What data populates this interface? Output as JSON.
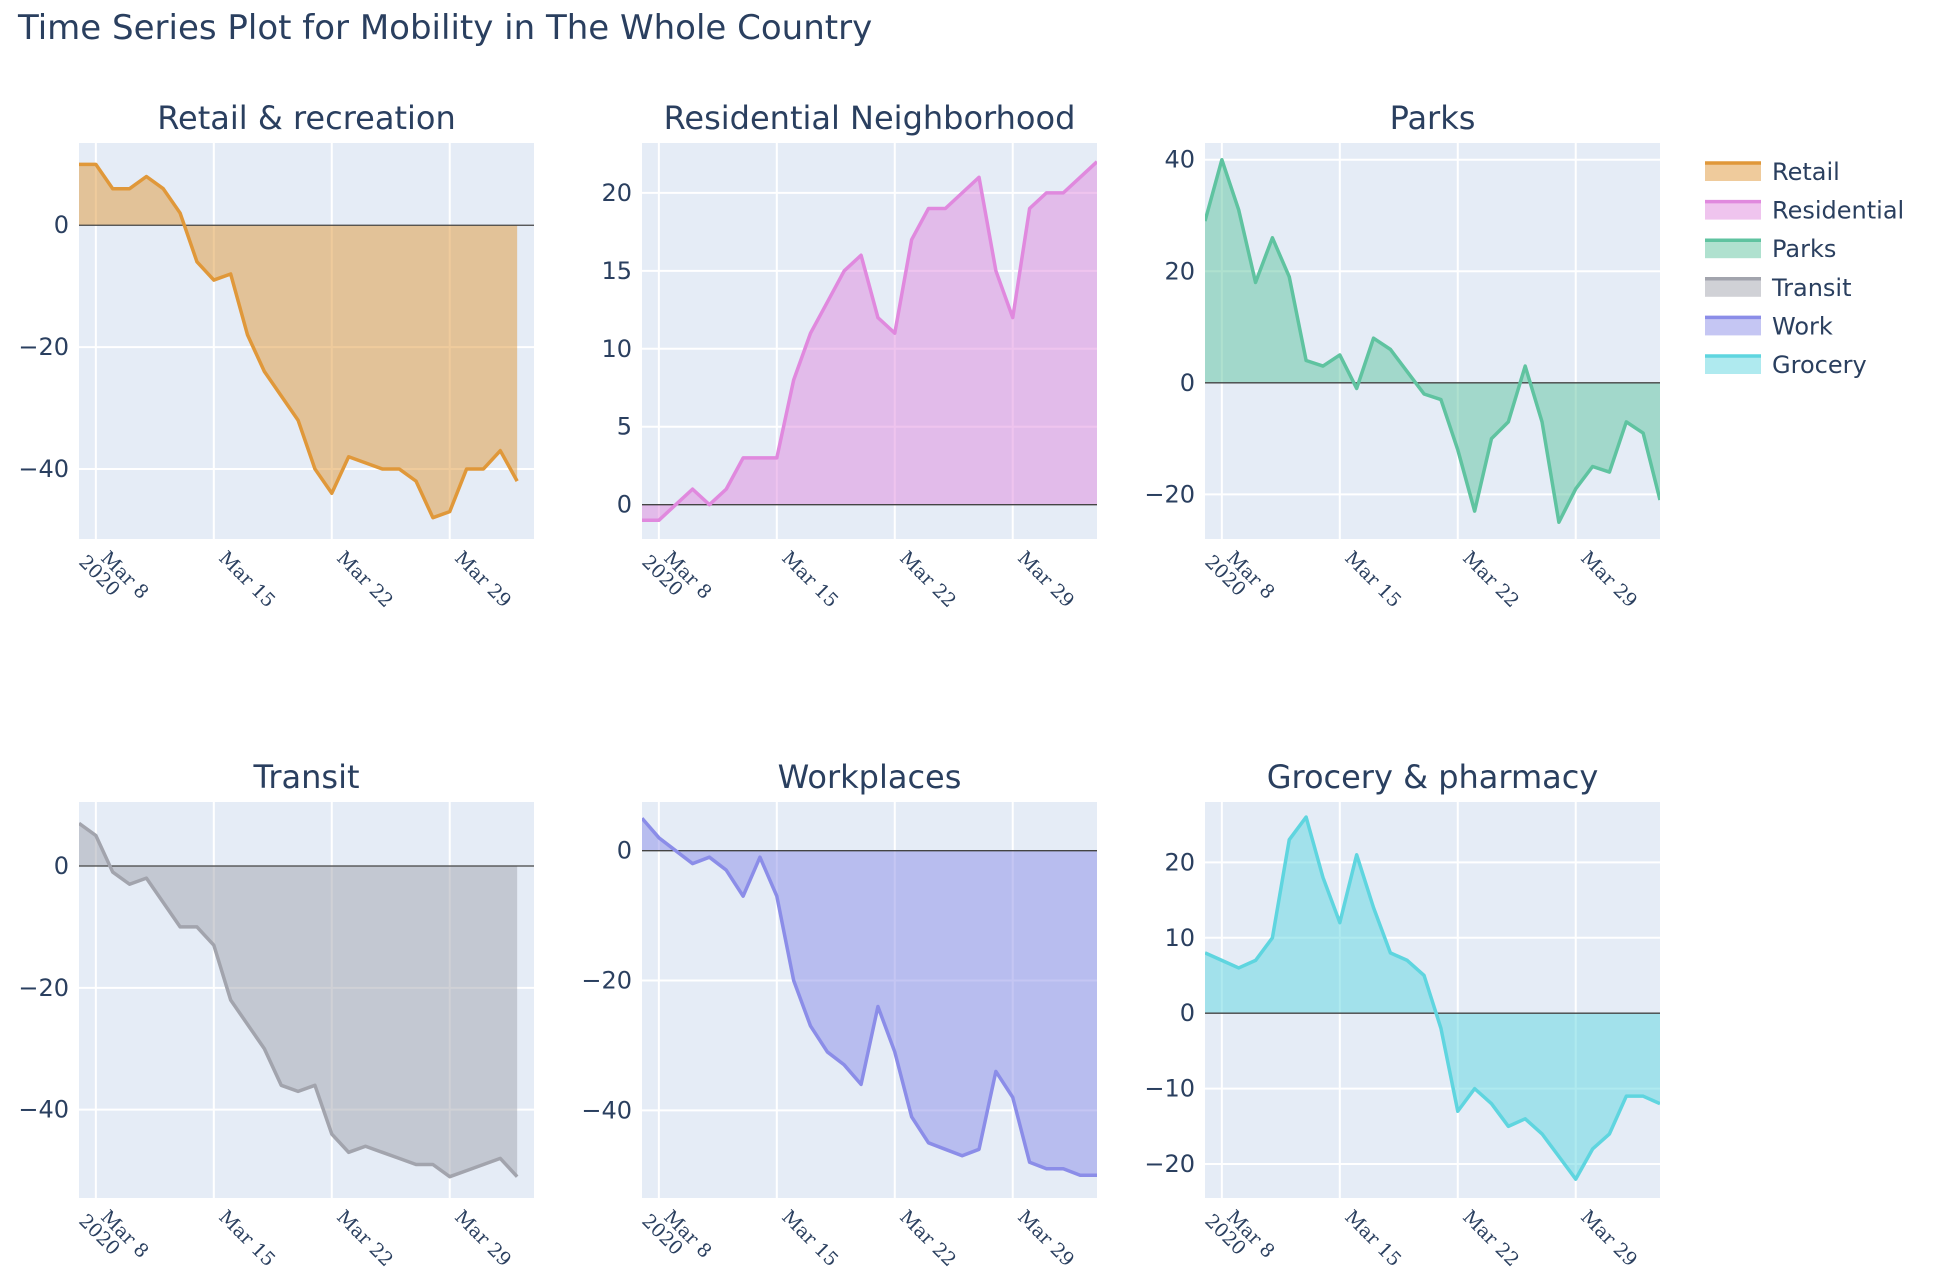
{
  "title": "Time Series Plot for Mobility in The Whole Country",
  "chart_data": [
    {
      "type": "area",
      "title": "Retail & recreation",
      "series_name": "Retail",
      "color": "#e0983a",
      "x": [
        "2020-03-07",
        "2020-03-08",
        "2020-03-09",
        "2020-03-10",
        "2020-03-11",
        "2020-03-12",
        "2020-03-13",
        "2020-03-14",
        "2020-03-15",
        "2020-03-16",
        "2020-03-17",
        "2020-03-18",
        "2020-03-19",
        "2020-03-20",
        "2020-03-21",
        "2020-03-22",
        "2020-03-23",
        "2020-03-24",
        "2020-03-25",
        "2020-03-26",
        "2020-03-27",
        "2020-03-28",
        "2020-03-29",
        "2020-03-30",
        "2020-03-31",
        "2020-04-01",
        "2020-04-02"
      ],
      "y": [
        10,
        10,
        6,
        6,
        8,
        6,
        2,
        -6,
        -9,
        -8,
        -18,
        -24,
        -28,
        -32,
        -40,
        -44,
        -38,
        -39,
        -40,
        -40,
        -42,
        -48,
        -47,
        -40,
        -40,
        -37,
        -42
      ],
      "ylim": [
        -51.5,
        13.5
      ],
      "yticks": [
        0,
        -20,
        -40
      ],
      "ytick_labels": [
        "0",
        "−20",
        "−40"
      ]
    },
    {
      "type": "area",
      "title": "Residential Neighborhood",
      "series_name": "Residential",
      "color": "#e089de",
      "x": [
        "2020-03-07",
        "2020-03-08",
        "2020-03-09",
        "2020-03-10",
        "2020-03-11",
        "2020-03-12",
        "2020-03-13",
        "2020-03-14",
        "2020-03-15",
        "2020-03-16",
        "2020-03-17",
        "2020-03-18",
        "2020-03-19",
        "2020-03-20",
        "2020-03-21",
        "2020-03-22",
        "2020-03-23",
        "2020-03-24",
        "2020-03-25",
        "2020-03-26",
        "2020-03-27",
        "2020-03-28",
        "2020-03-29",
        "2020-03-30",
        "2020-03-31",
        "2020-04-01",
        "2020-04-02",
        "2020-04-03"
      ],
      "y": [
        -1,
        -1,
        0,
        1,
        0,
        1,
        3,
        3,
        3,
        8,
        11,
        13,
        15,
        16,
        12,
        11,
        17,
        19,
        19,
        20,
        21,
        15,
        12,
        19,
        20,
        20,
        21,
        22
      ],
      "ylim": [
        -2.2,
        23.2
      ],
      "yticks": [
        0,
        5,
        10,
        15,
        20
      ],
      "ytick_labels": [
        "0",
        "5",
        "10",
        "15",
        "20"
      ]
    },
    {
      "type": "area",
      "title": "Parks",
      "series_name": "Parks",
      "color": "#5fc3a0",
      "x": [
        "2020-03-07",
        "2020-03-08",
        "2020-03-09",
        "2020-03-10",
        "2020-03-11",
        "2020-03-12",
        "2020-03-13",
        "2020-03-14",
        "2020-03-15",
        "2020-03-16",
        "2020-03-17",
        "2020-03-18",
        "2020-03-19",
        "2020-03-20",
        "2020-03-21",
        "2020-03-22",
        "2020-03-23",
        "2020-03-24",
        "2020-03-25",
        "2020-03-26",
        "2020-03-27",
        "2020-03-28",
        "2020-03-29",
        "2020-03-30",
        "2020-03-31",
        "2020-04-01",
        "2020-04-02",
        "2020-04-03"
      ],
      "y": [
        29,
        40,
        31,
        18,
        26,
        19,
        4,
        3,
        5,
        -1,
        8,
        6,
        2,
        -2,
        -3,
        -12,
        -23,
        -10,
        -7,
        3,
        -7,
        -25,
        -19,
        -15,
        -16,
        -7,
        -9,
        -21
      ],
      "ylim": [
        -28,
        43
      ],
      "yticks": [
        40,
        20,
        0,
        -20
      ],
      "ytick_labels": [
        "40",
        "20",
        "0",
        "−20"
      ]
    },
    {
      "type": "area",
      "title": "Transit",
      "series_name": "Transit",
      "color": "#a2a4ad",
      "x": [
        "2020-03-07",
        "2020-03-08",
        "2020-03-09",
        "2020-03-10",
        "2020-03-11",
        "2020-03-12",
        "2020-03-13",
        "2020-03-14",
        "2020-03-15",
        "2020-03-16",
        "2020-03-17",
        "2020-03-18",
        "2020-03-19",
        "2020-03-20",
        "2020-03-21",
        "2020-03-22",
        "2020-03-23",
        "2020-03-24",
        "2020-03-25",
        "2020-03-26",
        "2020-03-27",
        "2020-03-28",
        "2020-03-29",
        "2020-03-30",
        "2020-03-31",
        "2020-04-01",
        "2020-04-02"
      ],
      "y": [
        7,
        5,
        -1,
        -3,
        -2,
        -6,
        -10,
        -10,
        -13,
        -22,
        -26,
        -30,
        -36,
        -37,
        -36,
        -44,
        -47,
        -46,
        -47,
        -48,
        -49,
        -49,
        -51,
        -50,
        -49,
        -48,
        -51
      ],
      "ylim": [
        -54.5,
        10.5
      ],
      "yticks": [
        0,
        -20,
        -40
      ],
      "ytick_labels": [
        "0",
        "−20",
        "−40"
      ]
    },
    {
      "type": "area",
      "title": "Workplaces",
      "series_name": "Work",
      "color": "#8b8de8",
      "x": [
        "2020-03-07",
        "2020-03-08",
        "2020-03-09",
        "2020-03-10",
        "2020-03-11",
        "2020-03-12",
        "2020-03-13",
        "2020-03-14",
        "2020-03-15",
        "2020-03-16",
        "2020-03-17",
        "2020-03-18",
        "2020-03-19",
        "2020-03-20",
        "2020-03-21",
        "2020-03-22",
        "2020-03-23",
        "2020-03-24",
        "2020-03-25",
        "2020-03-26",
        "2020-03-27",
        "2020-03-28",
        "2020-03-29",
        "2020-03-30",
        "2020-03-31",
        "2020-04-01",
        "2020-04-02",
        "2020-04-03"
      ],
      "y": [
        5,
        2,
        0,
        -2,
        -1,
        -3,
        -7,
        -1,
        -7,
        -20,
        -27,
        -31,
        -33,
        -36,
        -24,
        -31,
        -41,
        -45,
        -46,
        -47,
        -46,
        -34,
        -38,
        -48,
        -49,
        -49,
        -50,
        -50
      ],
      "ylim": [
        -53.5,
        7.5
      ],
      "yticks": [
        0,
        -20,
        -40
      ],
      "ytick_labels": [
        "0",
        "−20",
        "−40"
      ]
    },
    {
      "type": "area",
      "title": "Grocery & pharmacy",
      "series_name": "Grocery",
      "color": "#5fd5df",
      "x": [
        "2020-03-07",
        "2020-03-08",
        "2020-03-09",
        "2020-03-10",
        "2020-03-11",
        "2020-03-12",
        "2020-03-13",
        "2020-03-14",
        "2020-03-15",
        "2020-03-16",
        "2020-03-17",
        "2020-03-18",
        "2020-03-19",
        "2020-03-20",
        "2020-03-21",
        "2020-03-22",
        "2020-03-23",
        "2020-03-24",
        "2020-03-25",
        "2020-03-26",
        "2020-03-27",
        "2020-03-28",
        "2020-03-29",
        "2020-03-30",
        "2020-03-31",
        "2020-04-01",
        "2020-04-02",
        "2020-04-03"
      ],
      "y": [
        8,
        7,
        6,
        7,
        10,
        23,
        26,
        18,
        12,
        21,
        14,
        8,
        7,
        5,
        -2,
        -13,
        -10,
        -12,
        -15,
        -14,
        -16,
        -19,
        -22,
        -18,
        -16,
        -11,
        -11,
        -12
      ],
      "ylim": [
        -24.5,
        28
      ],
      "yticks": [
        20,
        10,
        0,
        -10,
        -20
      ],
      "ytick_labels": [
        "20",
        "10",
        "0",
        "−10",
        "−20"
      ]
    }
  ],
  "x_axis": {
    "ticks": [
      "2020-03-08",
      "2020-03-15",
      "2020-03-22",
      "2020-03-29"
    ],
    "tick_labels": [
      "Mar 8",
      "Mar 15",
      "Mar 22",
      "Mar 29"
    ],
    "first_tick_year": "2020",
    "range": [
      "2020-03-07",
      "2020-04-03"
    ]
  },
  "legend": {
    "placement": "right",
    "items": [
      {
        "label": "Retail",
        "color": "#e0983a"
      },
      {
        "label": "Residential",
        "color": "#e089de"
      },
      {
        "label": "Parks",
        "color": "#5fc3a0"
      },
      {
        "label": "Transit",
        "color": "#a2a4ad"
      },
      {
        "label": "Work",
        "color": "#8b8de8"
      },
      {
        "label": "Grocery",
        "color": "#5fd5df"
      }
    ]
  },
  "colors": {
    "plot_bg": "#e5ecf6",
    "grid": "#ffffff",
    "text": "#2a3f5f"
  }
}
